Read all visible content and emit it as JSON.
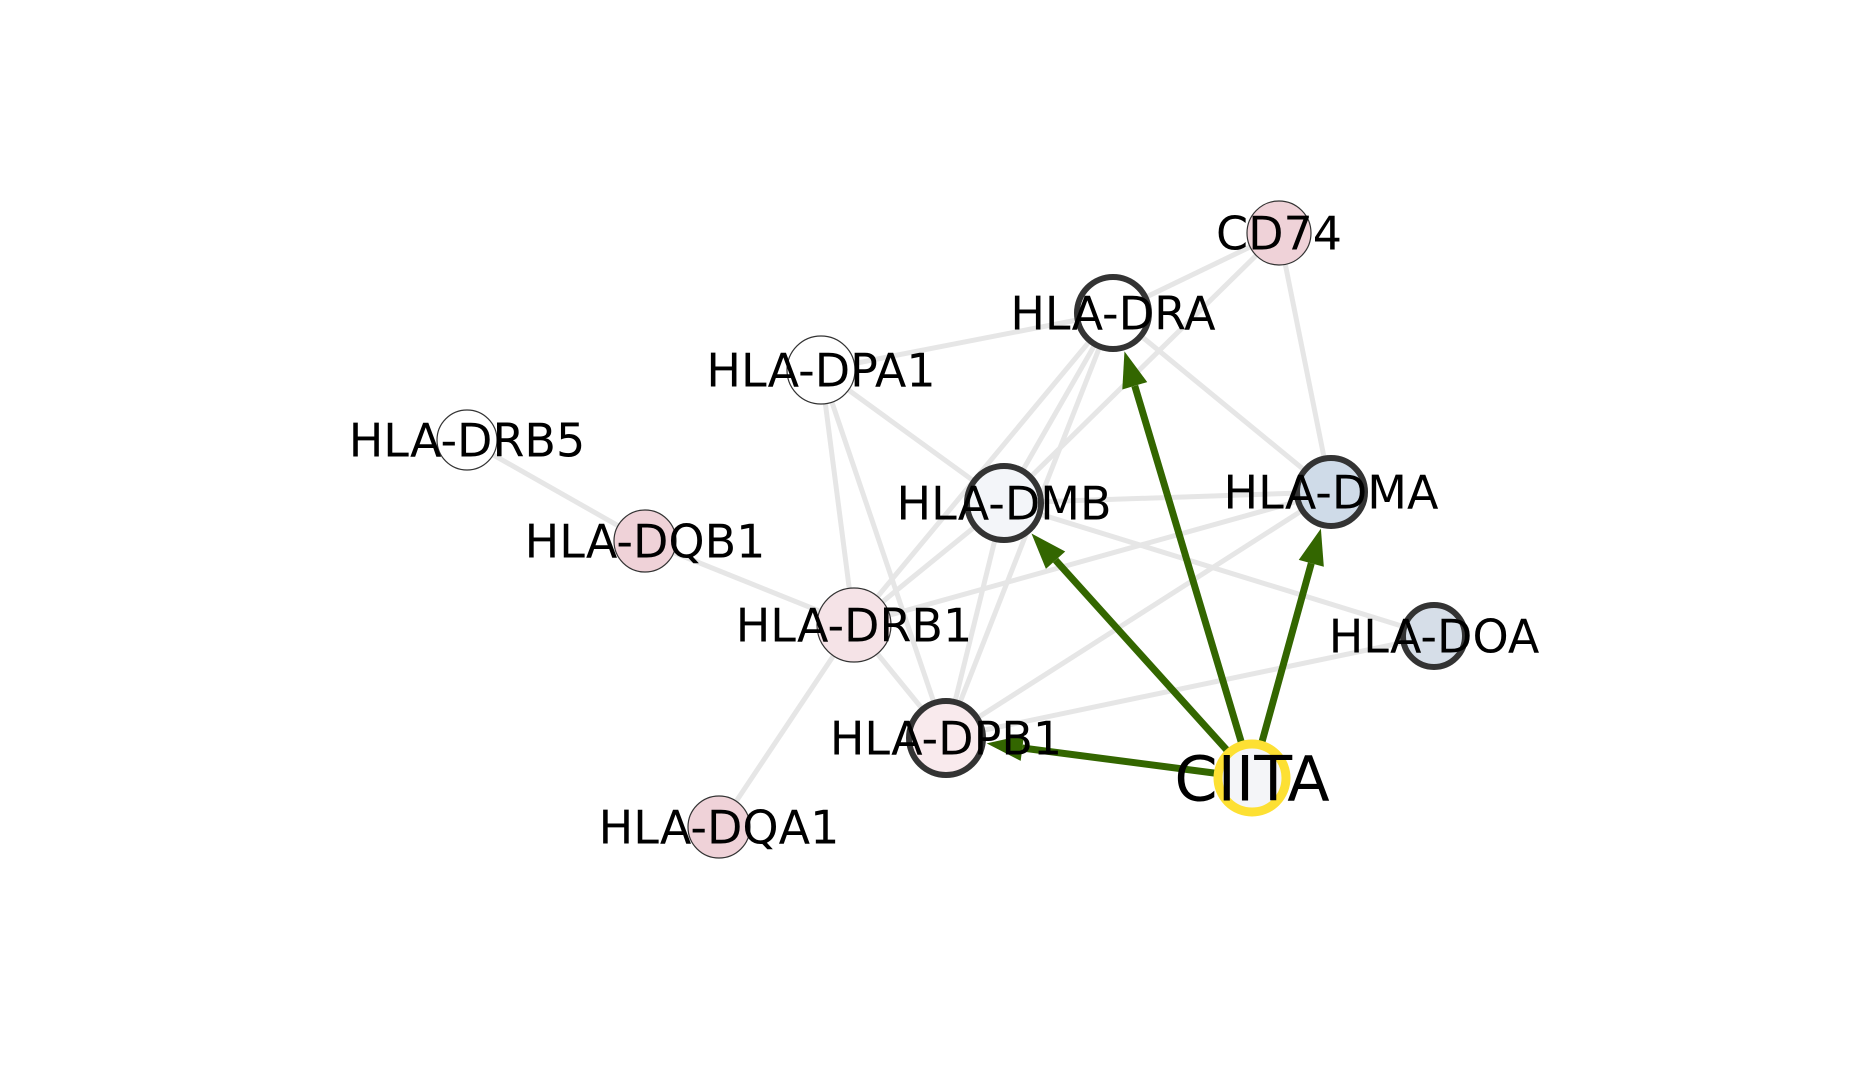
{
  "nodes": [
    {
      "id": "CIITA",
      "label": "CIITA",
      "fill": "#f4f5f8",
      "stroke": "#fde033",
      "kind": "source"
    },
    {
      "id": "CD74",
      "label": "CD74",
      "fill": "#efd2d8",
      "stroke": "#333333",
      "kind": "thin"
    },
    {
      "id": "HLA-DRA",
      "label": "HLA-DRA",
      "fill": "#ffffff",
      "stroke": "#333333",
      "kind": "thick"
    },
    {
      "id": "HLA-DPA1",
      "label": "HLA-DPA1",
      "fill": "#ffffff",
      "stroke": "#333333",
      "kind": "thin"
    },
    {
      "id": "HLA-DRB5",
      "label": "HLA-DRB5",
      "fill": "#ffffff",
      "stroke": "#333333",
      "kind": "thin"
    },
    {
      "id": "HLA-DMB",
      "label": "HLA-DMB",
      "fill": "#f3f5f9",
      "stroke": "#333333",
      "kind": "thick"
    },
    {
      "id": "HLA-DMA",
      "label": "HLA-DMA",
      "fill": "#cfdbe8",
      "stroke": "#333333",
      "kind": "thick"
    },
    {
      "id": "HLA-DQB1",
      "label": "HLA-DQB1",
      "fill": "#efd2d8",
      "stroke": "#333333",
      "kind": "thin"
    },
    {
      "id": "HLA-DRB1",
      "label": "HLA-DRB1",
      "fill": "#f5e3e7",
      "stroke": "#333333",
      "kind": "thin"
    },
    {
      "id": "HLA-DOA",
      "label": "HLA-DOA",
      "fill": "#d6dee8",
      "stroke": "#333333",
      "kind": "thick"
    },
    {
      "id": "HLA-DPB1",
      "label": "HLA-DPB1",
      "fill": "#f9eaed",
      "stroke": "#333333",
      "kind": "thick"
    },
    {
      "id": "HLA-DQA1",
      "label": "HLA-DQA1",
      "fill": "#efd2d8",
      "stroke": "#333333",
      "kind": "thin"
    }
  ],
  "edges": [
    {
      "from": "HLA-DRA",
      "to": "CD74"
    },
    {
      "from": "HLA-DPA1",
      "to": "HLA-DRA"
    },
    {
      "from": "CD74",
      "to": "HLA-DMA"
    },
    {
      "from": "CD74",
      "to": "HLA-DMB"
    },
    {
      "from": "HLA-DRA",
      "to": "HLA-DMA"
    },
    {
      "from": "HLA-DRA",
      "to": "HLA-DMB"
    },
    {
      "from": "HLA-DRA",
      "to": "HLA-DRB1"
    },
    {
      "from": "HLA-DRA",
      "to": "HLA-DPB1"
    },
    {
      "from": "HLA-DPA1",
      "to": "HLA-DMB"
    },
    {
      "from": "HLA-DPA1",
      "to": "HLA-DRB1"
    },
    {
      "from": "HLA-DPA1",
      "to": "HLA-DPB1"
    },
    {
      "from": "HLA-DRB5",
      "to": "HLA-DQB1"
    },
    {
      "from": "HLA-DQB1",
      "to": "HLA-DRB1"
    },
    {
      "from": "HLA-DMB",
      "to": "HLA-DMA"
    },
    {
      "from": "HLA-DMB",
      "to": "HLA-DOA"
    },
    {
      "from": "HLA-DMB",
      "to": "HLA-DRB1"
    },
    {
      "from": "HLA-DMB",
      "to": "HLA-DPB1"
    },
    {
      "from": "HLA-DMA",
      "to": "HLA-DRB1"
    },
    {
      "from": "HLA-DMA",
      "to": "HLA-DPB1"
    },
    {
      "from": "HLA-DOA",
      "to": "HLA-DPB1"
    },
    {
      "from": "HLA-DRB1",
      "to": "HLA-DPB1"
    },
    {
      "from": "HLA-DRB1",
      "to": "HLA-DQA1"
    }
  ],
  "regulatory_edges": [
    {
      "from": "CIITA",
      "to": "HLA-DRA"
    },
    {
      "from": "CIITA",
      "to": "HLA-DMB"
    },
    {
      "from": "CIITA",
      "to": "HLA-DMA"
    },
    {
      "from": "CIITA",
      "to": "HLA-DPB1"
    }
  ],
  "colors": {
    "edge": "#e6e6e6",
    "regulatory_edge": "#336600",
    "node_outline": "#333333",
    "source_outline": "#fde033",
    "label": "#000000"
  }
}
